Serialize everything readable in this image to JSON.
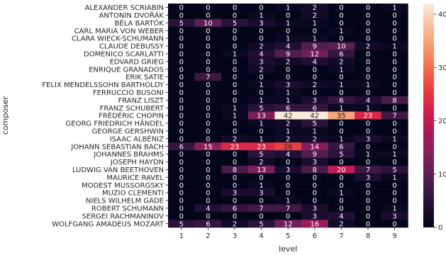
{
  "chart_data": {
    "type": "heatmap",
    "xlabel": "level",
    "ylabel": "composer",
    "columns": [
      "1",
      "2",
      "3",
      "4",
      "5",
      "6",
      "7",
      "8",
      "9"
    ],
    "rows": [
      "ALEXANDER SCRIABIN",
      "ANTONÍN DVOŘÁK",
      "BÉLA BARTÓK",
      "CARL MARIA VON WEBER",
      "CLARA WIECK-SCHUMANN",
      "CLAUDE DEBUSSY",
      "DOMENICO SCARLATTI",
      "EDVARD GRIEG",
      "ENRIQUE GRANADOS",
      "ERIK SATIE",
      "FELIX MENDELSSOHN BARTHOLDY",
      "FERRUCCIO BUSONI",
      "FRANZ LISZT",
      "FRANZ SCHUBERT",
      "FRÉDÉRIC CHOPIN",
      "GEORG FRIEDRICH HÄNDEL",
      "GEORGE GERSHWIN",
      "ISAAC ALBÉNIZ",
      "JOHANN SEBASTIAN BACH",
      "JOHANNES BRAHMS",
      "JOSEPH HAYDN",
      "LUDWIG VAN BEETHOVEN",
      "MAURICE RAVEL",
      "MODEST MUSSORGSKY",
      "MUZIO CLEMENTI",
      "NIELS WILHELM GADE",
      "ROBERT SCHUMANN",
      "SERGEI RACHMANINOV",
      "WOLFGANG AMADEUS MOZART"
    ],
    "values": [
      [
        0,
        0,
        0,
        0,
        1,
        2,
        0,
        0,
        1
      ],
      [
        0,
        0,
        0,
        1,
        0,
        2,
        0,
        0,
        0
      ],
      [
        5,
        10,
        5,
        3,
        1,
        1,
        0,
        0,
        0
      ],
      [
        0,
        0,
        0,
        0,
        0,
        0,
        1,
        0,
        0
      ],
      [
        0,
        0,
        0,
        0,
        1,
        1,
        0,
        0,
        0
      ],
      [
        0,
        0,
        0,
        2,
        4,
        9,
        10,
        2,
        1
      ],
      [
        0,
        0,
        1,
        4,
        9,
        12,
        6,
        0,
        0
      ],
      [
        0,
        0,
        0,
        3,
        2,
        4,
        2,
        0,
        0
      ],
      [
        0,
        0,
        0,
        2,
        0,
        0,
        1,
        0,
        0
      ],
      [
        0,
        7,
        0,
        0,
        0,
        0,
        0,
        0,
        0
      ],
      [
        0,
        0,
        0,
        1,
        3,
        2,
        1,
        1,
        0
      ],
      [
        0,
        0,
        0,
        0,
        1,
        0,
        0,
        0,
        0
      ],
      [
        0,
        0,
        0,
        1,
        1,
        3,
        6,
        4,
        8
      ],
      [
        0,
        0,
        1,
        5,
        6,
        6,
        1,
        1,
        0
      ],
      [
        0,
        0,
        1,
        13,
        42,
        42,
        35,
        23,
        7
      ],
      [
        0,
        0,
        0,
        1,
        2,
        5,
        0,
        0,
        0
      ],
      [
        0,
        0,
        0,
        0,
        1,
        1,
        0,
        0,
        0
      ],
      [
        0,
        0,
        2,
        1,
        2,
        2,
        1,
        3,
        1
      ],
      [
        6,
        15,
        23,
        23,
        26,
        14,
        6,
        0,
        0
      ],
      [
        0,
        0,
        0,
        5,
        4,
        9,
        5,
        1,
        1
      ],
      [
        0,
        0,
        0,
        2,
        0,
        3,
        0,
        0,
        0
      ],
      [
        0,
        0,
        8,
        13,
        3,
        8,
        20,
        7,
        5
      ],
      [
        0,
        0,
        0,
        0,
        0,
        0,
        0,
        3,
        1
      ],
      [
        0,
        0,
        0,
        1,
        0,
        0,
        0,
        0,
        0
      ],
      [
        0,
        0,
        3,
        3,
        0,
        0,
        1,
        0,
        0
      ],
      [
        0,
        0,
        0,
        0,
        1,
        0,
        0,
        0,
        0
      ],
      [
        0,
        4,
        6,
        7,
        7,
        3,
        0,
        0,
        1
      ],
      [
        0,
        0,
        0,
        0,
        0,
        3,
        4,
        0,
        3
      ],
      [
        5,
        6,
        2,
        5,
        12,
        16,
        2,
        0,
        0
      ]
    ],
    "vmin": 0,
    "vmax": 42,
    "colorbar_ticks": [
      0,
      10,
      20,
      30,
      40
    ],
    "colormap": "rocket",
    "grid": false
  }
}
